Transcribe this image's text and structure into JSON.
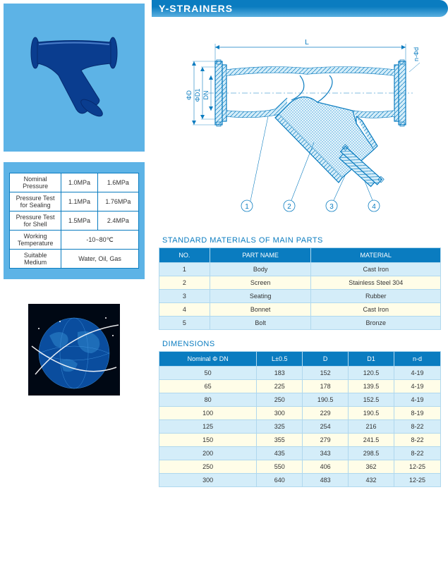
{
  "header": {
    "title": "Y-STRAINERS"
  },
  "spec_table": {
    "rows": [
      {
        "label": "Nominal Pressure",
        "v1": "1.0MPa",
        "v2": "1.6MPa"
      },
      {
        "label": "Pressure Test for Sealing",
        "v1": "1.1MPa",
        "v2": "1.76MPa"
      },
      {
        "label": "Pressure Test for Shell",
        "v1": "1.5MPa",
        "v2": "2.4MPa"
      },
      {
        "label": "Working Temperature",
        "v1": "-10~80℃",
        "v2": ""
      },
      {
        "label": "Suitable Medium",
        "v1": "Water, Oil, Gas",
        "v2": ""
      }
    ]
  },
  "diagram": {
    "labels": {
      "L": "L",
      "D": "ΦD",
      "D1": "ΦD1",
      "DN": "DN",
      "nd": "n-Φd"
    },
    "callouts": [
      "1",
      "2",
      "3",
      "4"
    ],
    "colors": {
      "line": "#0a7cc0",
      "fill": "#d4edf9",
      "hatch": "#5ab0e0"
    }
  },
  "materials": {
    "title": "STANDARD MATERIALS OF MAIN PARTS",
    "columns": [
      "NO.",
      "PART NAME",
      "MATERIAL"
    ],
    "rows": [
      [
        "1",
        "Body",
        "Cast Iron"
      ],
      [
        "2",
        "Screen",
        "Stainless Steel 304"
      ],
      [
        "3",
        "Seating",
        "Rubber"
      ],
      [
        "4",
        "Bonnet",
        "Cast Iron"
      ],
      [
        "5",
        "Bolt",
        "Bronze"
      ]
    ]
  },
  "dimensions": {
    "title": "DIMENSIONS",
    "columns": [
      "Nominal Φ DN",
      "L±0.5",
      "D",
      "D1",
      "n-d"
    ],
    "rows": [
      [
        "50",
        "183",
        "152",
        "120.5",
        "4-19"
      ],
      [
        "65",
        "225",
        "178",
        "139.5",
        "4-19"
      ],
      [
        "80",
        "250",
        "190.5",
        "152.5",
        "4-19"
      ],
      [
        "100",
        "300",
        "229",
        "190.5",
        "8-19"
      ],
      [
        "125",
        "325",
        "254",
        "216",
        "8-22"
      ],
      [
        "150",
        "355",
        "279",
        "241.5",
        "8-22"
      ],
      [
        "200",
        "435",
        "343",
        "298.5",
        "8-22"
      ],
      [
        "250",
        "550",
        "406",
        "362",
        "12-25"
      ],
      [
        "300",
        "640",
        "483",
        "432",
        "12-25"
      ]
    ]
  },
  "colors": {
    "header_gradient_top": "#0a7cc0",
    "header_gradient_bottom": "#5ab0e0",
    "box_bg": "#5db3e6",
    "table_header": "#0a7cc0",
    "row_odd": "#d4edf9",
    "row_even": "#fffde8",
    "border": "#b0d8ee",
    "product_blue": "#0a3d8f"
  }
}
